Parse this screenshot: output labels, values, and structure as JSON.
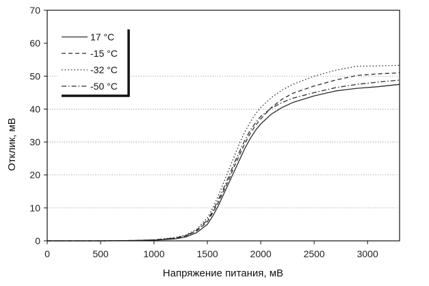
{
  "chart_data": {
    "type": "line",
    "title": "",
    "xlabel": "Напряжение питания, мВ",
    "ylabel": "Отклик, мВ",
    "xlim": [
      0,
      3300
    ],
    "ylim": [
      0,
      70
    ],
    "xticks": [
      0,
      500,
      1000,
      1500,
      2000,
      2500,
      3000
    ],
    "yticks": [
      0,
      10,
      20,
      30,
      40,
      50,
      60,
      70
    ],
    "grid_y": [
      10,
      20,
      30,
      40,
      50
    ],
    "legend_position": "top-left",
    "series": [
      {
        "name": "17 °C",
        "dash": "solid",
        "x": [
          0,
          500,
          800,
          1000,
          1200,
          1300,
          1400,
          1500,
          1550,
          1600,
          1650,
          1700,
          1750,
          1800,
          1850,
          1900,
          1950,
          2000,
          2100,
          2200,
          2300,
          2500,
          2700,
          2900,
          3100,
          3300
        ],
        "y": [
          0,
          0,
          0.1,
          0.2,
          0.6,
          1.2,
          2.5,
          5,
          7.5,
          10.5,
          14,
          17.5,
          21,
          24.5,
          28,
          31,
          33.5,
          35.5,
          38.5,
          40.5,
          42,
          44,
          45.5,
          46.3,
          46.8,
          47.5
        ]
      },
      {
        "name": "-15 °C",
        "dash": "dashed",
        "x": [
          0,
          500,
          800,
          1000,
          1200,
          1300,
          1400,
          1500,
          1550,
          1600,
          1650,
          1700,
          1750,
          1800,
          1850,
          1900,
          1950,
          2000,
          2100,
          2200,
          2300,
          2500,
          2700,
          2900,
          3100,
          3300
        ],
        "y": [
          0,
          0,
          0.1,
          0.3,
          0.8,
          1.5,
          3,
          5.8,
          8.5,
          11.5,
          15,
          18.5,
          22.5,
          26,
          29.5,
          32.5,
          35,
          37,
          40.5,
          43,
          44.8,
          47,
          48.8,
          50.2,
          50.7,
          51
        ]
      },
      {
        "name": "-32 °C",
        "dash": "dotted",
        "x": [
          0,
          500,
          800,
          1000,
          1200,
          1300,
          1400,
          1500,
          1550,
          1600,
          1650,
          1700,
          1750,
          1800,
          1850,
          1900,
          1950,
          2000,
          2100,
          2200,
          2300,
          2500,
          2700,
          2900,
          3100,
          3300
        ],
        "y": [
          0,
          0,
          0.1,
          0.3,
          1,
          1.8,
          3.5,
          7,
          10,
          13.5,
          17.5,
          21.5,
          25.5,
          29.5,
          33,
          36,
          38.5,
          40.5,
          43.5,
          45.8,
          47.5,
          50,
          51.8,
          53,
          53.1,
          53.3
        ]
      },
      {
        "name": "-50 °C",
        "dash": "dashdot",
        "x": [
          0,
          500,
          800,
          1000,
          1200,
          1300,
          1400,
          1500,
          1550,
          1600,
          1650,
          1700,
          1750,
          1800,
          1850,
          1900,
          1950,
          2000,
          2100,
          2200,
          2300,
          2500,
          2700,
          2900,
          3100,
          3300
        ],
        "y": [
          0,
          0,
          0.1,
          0.3,
          0.9,
          1.6,
          3.2,
          6.3,
          9,
          12.3,
          15.8,
          19.5,
          23.5,
          27,
          30.5,
          33.5,
          35.8,
          37.8,
          40.3,
          42,
          43.3,
          45,
          46.5,
          47.5,
          48.2,
          48.8
        ]
      }
    ]
  },
  "style": {
    "line_color": "#2a2a2a",
    "grid_color": "#9a9a9a",
    "axis_color": "#111111"
  }
}
